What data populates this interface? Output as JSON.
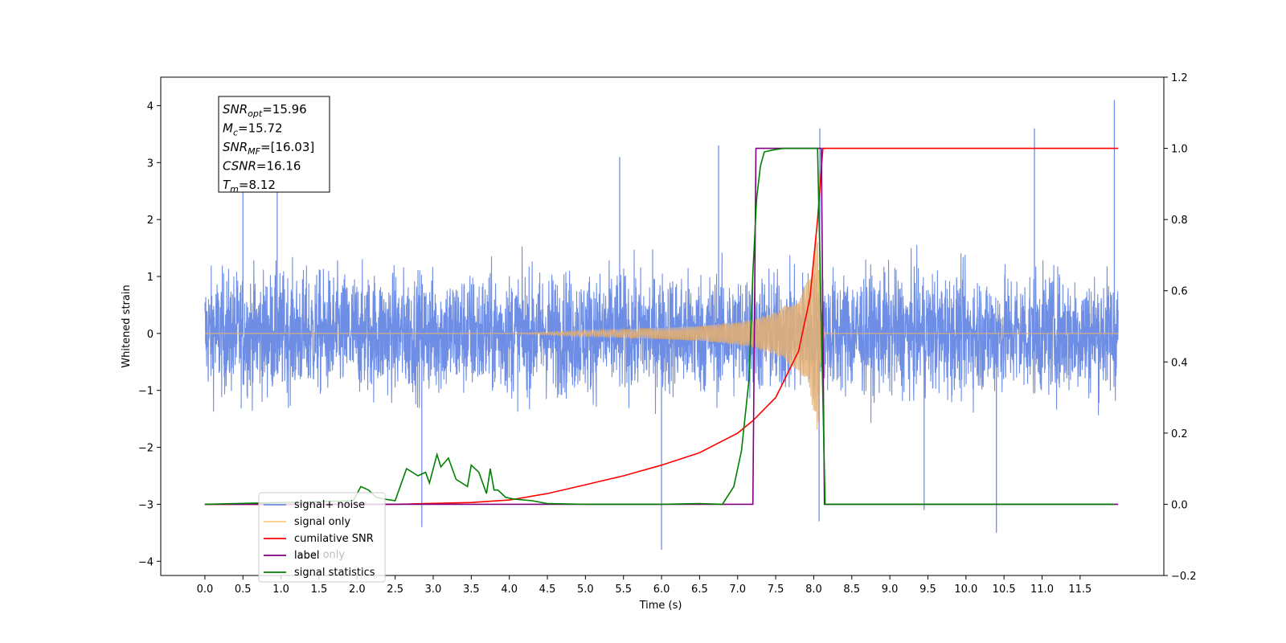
{
  "chart_data": {
    "type": "line",
    "xlabel": "Time (s)",
    "ylabel": "Whitened strain",
    "x_ticks": [
      "0.0",
      "0.5",
      "1.0",
      "1.5",
      "2.0",
      "2.5",
      "3.0",
      "3.5",
      "4.0",
      "4.5",
      "5.0",
      "5.5",
      "6.0",
      "6.5",
      "7.0",
      "7.5",
      "8.0",
      "8.5",
      "9.0",
      "9.5",
      "10.0",
      "10.5",
      "11.0",
      "11.5"
    ],
    "y_ticks_left": [
      "4",
      "3",
      "2",
      "1",
      "0",
      "−1",
      "−2",
      "−3",
      "−4"
    ],
    "y_ticks_right": [
      "1.2",
      "1.0",
      "0.8",
      "0.6",
      "0.4",
      "0.2",
      "0.0",
      "−0.2"
    ],
    "xlim": [
      -0.58,
      12.6
    ],
    "ylim_left": [
      -4.25,
      4.5
    ],
    "ylim_right": [
      -0.2,
      1.2
    ],
    "grid": false,
    "legend_position": "lower-left",
    "annotation_box": {
      "lines": [
        {
          "sym": "SNR",
          "sub": "opt",
          "val": "=15.96"
        },
        {
          "sym": "M",
          "sub": "c",
          "val": "=15.72"
        },
        {
          "sym": "SNR",
          "sub": "MF",
          "val": "=[16.03]"
        },
        {
          "sym": "CSNR",
          "sub": "",
          "val": "=16.16"
        },
        {
          "sym": "T",
          "sub": "m",
          "val": "=8.12"
        }
      ]
    },
    "legend": [
      {
        "label": "signal+ noise",
        "color": "#6e8ee6"
      },
      {
        "label": "signal only",
        "color": "#ffcc80"
      },
      {
        "label": "cumilative SNR",
        "color": "#ff0000"
      },
      {
        "label": "label",
        "color": "#800080"
      },
      {
        "label": "signal statistics",
        "color": "#008000"
      }
    ],
    "hidden_legend_text": [
      "label only"
    ],
    "series": [
      {
        "name": "signal+ noise",
        "axis": "left",
        "color": "#6e8ee6",
        "description": "dense white noise, roughly between -2.5 and 2.5",
        "x_range": [
          0.0,
          12.0
        ],
        "spikes": [
          [
            0.5,
            2.7
          ],
          [
            0.95,
            3.0
          ],
          [
            2.85,
            -3.4
          ],
          [
            5.45,
            3.1
          ],
          [
            6.0,
            -3.8
          ],
          [
            6.75,
            3.3
          ],
          [
            8.08,
            3.6
          ],
          [
            8.07,
            -3.3
          ],
          [
            9.45,
            -3.1
          ],
          [
            10.4,
            -3.5
          ],
          [
            10.9,
            3.6
          ],
          [
            11.95,
            4.1
          ]
        ]
      },
      {
        "name": "signal only",
        "axis": "left",
        "color": "#e8b070",
        "description": "chirp with growing amplitude ending at merger",
        "x": [
          0.0,
          4.0,
          5.0,
          6.0,
          6.5,
          7.0,
          7.2,
          7.5,
          7.8,
          7.95,
          8.05,
          8.1,
          8.15,
          12.0
        ],
        "envelope": [
          0.0,
          0.0,
          0.05,
          0.1,
          0.13,
          0.2,
          0.25,
          0.38,
          0.65,
          1.0,
          1.85,
          0.4,
          0.0,
          0.0
        ]
      },
      {
        "name": "cumilative SNR",
        "axis": "right",
        "color": "#ff0000",
        "x": [
          0.0,
          2.5,
          3.5,
          4.0,
          4.5,
          5.0,
          5.5,
          6.0,
          6.5,
          7.0,
          7.2,
          7.5,
          7.8,
          7.95,
          8.05,
          8.12,
          12.0
        ],
        "y": [
          0.0,
          0.0,
          0.005,
          0.012,
          0.03,
          0.055,
          0.08,
          0.11,
          0.145,
          0.2,
          0.235,
          0.3,
          0.43,
          0.58,
          0.8,
          1.0,
          1.0
        ]
      },
      {
        "name": "label",
        "axis": "right",
        "color": "#800080",
        "x": [
          0.0,
          7.2,
          7.24,
          8.1,
          8.14,
          12.0
        ],
        "y": [
          0.0,
          0.0,
          1.0,
          1.0,
          0.0,
          0.0
        ]
      },
      {
        "name": "signal statistics",
        "axis": "right",
        "color": "#008000",
        "x": [
          0.0,
          1.95,
          2.05,
          2.15,
          2.25,
          2.35,
          2.5,
          2.65,
          2.8,
          2.9,
          2.95,
          3.05,
          3.1,
          3.2,
          3.3,
          3.45,
          3.5,
          3.6,
          3.7,
          3.75,
          3.8,
          3.85,
          3.95,
          4.05,
          4.3,
          4.5,
          5.0,
          6.0,
          6.5,
          6.8,
          6.95,
          7.05,
          7.15,
          7.2,
          7.25,
          7.3,
          7.35,
          7.45,
          7.6,
          8.05,
          8.1,
          8.15,
          11.95
        ],
        "y": [
          0.0,
          0.01,
          0.05,
          0.04,
          0.02,
          0.015,
          0.01,
          0.1,
          0.08,
          0.09,
          0.06,
          0.14,
          0.105,
          0.13,
          0.07,
          0.05,
          0.11,
          0.09,
          0.03,
          0.1,
          0.04,
          0.04,
          0.02,
          0.015,
          0.01,
          0.002,
          0.0,
          0.0,
          0.002,
          0.0,
          0.05,
          0.15,
          0.35,
          0.65,
          0.86,
          0.95,
          0.99,
          0.995,
          1.0,
          1.0,
          0.5,
          0.0,
          0.0
        ]
      }
    ]
  }
}
